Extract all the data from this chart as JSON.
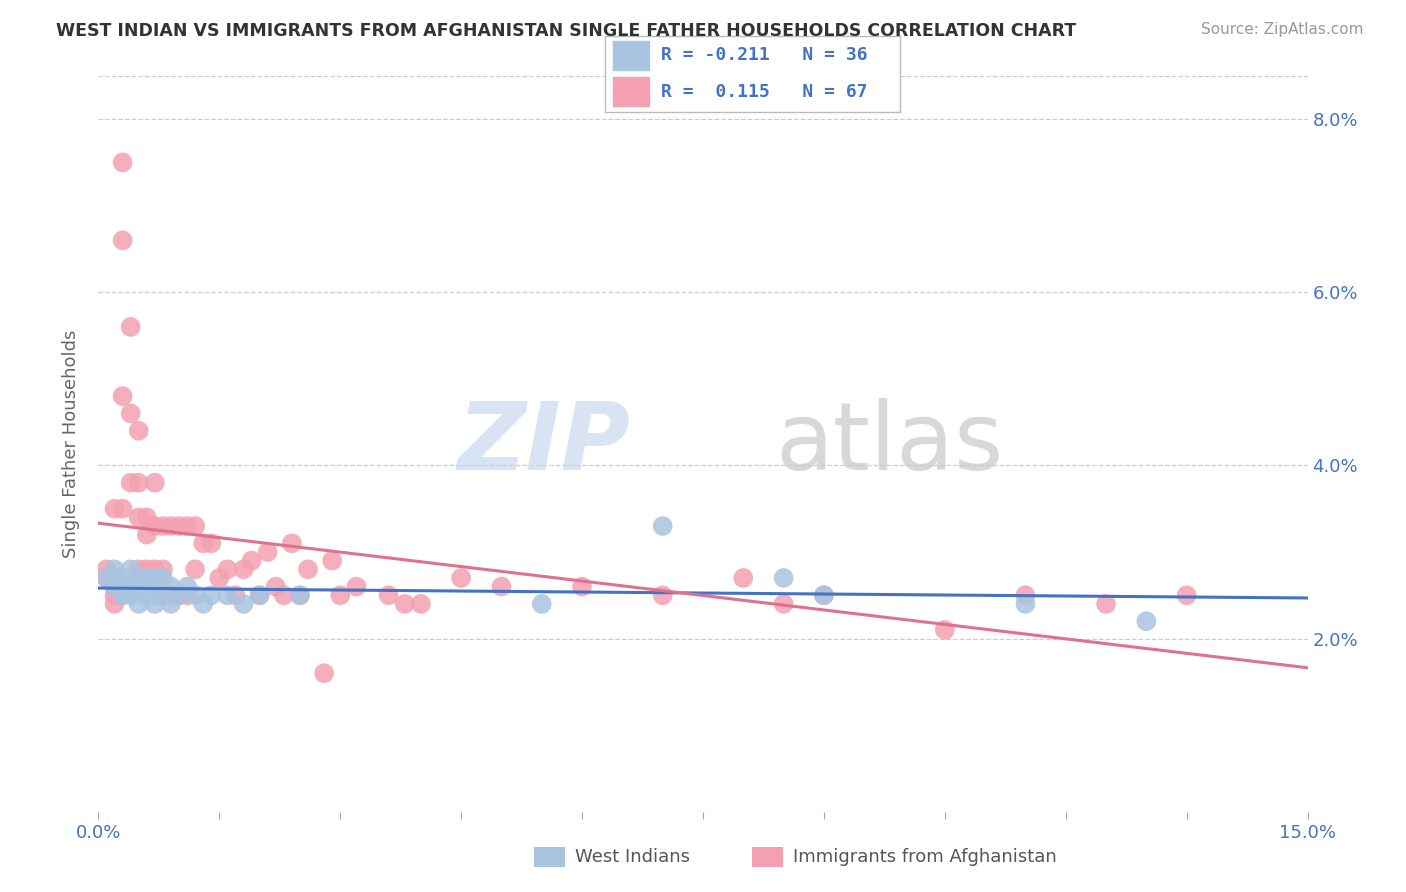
{
  "title": "WEST INDIAN VS IMMIGRANTS FROM AFGHANISTAN SINGLE FATHER HOUSEHOLDS CORRELATION CHART",
  "source": "Source: ZipAtlas.com",
  "ylabel": "Single Father Households",
  "xlim": [
    0.0,
    0.15
  ],
  "ylim": [
    0.0,
    0.085
  ],
  "ytick_positions": [
    0.0,
    0.01,
    0.02,
    0.03,
    0.04,
    0.05,
    0.06,
    0.07,
    0.08
  ],
  "ytick_labels": [
    "",
    "",
    "2.0%",
    "",
    "4.0%",
    "",
    "6.0%",
    "",
    "8.0%"
  ],
  "xtick_positions": [
    0.0,
    0.015,
    0.03,
    0.045,
    0.06,
    0.075,
    0.09,
    0.105,
    0.12,
    0.135,
    0.15
  ],
  "xtick_labels": [
    "0.0%",
    "",
    "",
    "",
    "",
    "",
    "",
    "",
    "",
    "",
    "15.0%"
  ],
  "west_indians_R": -0.211,
  "west_indians_N": 36,
  "afghanistan_R": 0.115,
  "afghanistan_N": 67,
  "west_indians_color": "#a8c4e0",
  "afghanistan_color": "#f4a0b0",
  "west_indians_line_color": "#4472c4",
  "afghanistan_line_color": "#e07090",
  "background_color": "#ffffff",
  "grid_color": "#cccccc",
  "west_indians_x": [
    0.001,
    0.002,
    0.002,
    0.003,
    0.003,
    0.003,
    0.004,
    0.004,
    0.004,
    0.005,
    0.005,
    0.005,
    0.006,
    0.006,
    0.007,
    0.007,
    0.007,
    0.008,
    0.008,
    0.009,
    0.009,
    0.01,
    0.011,
    0.012,
    0.013,
    0.014,
    0.016,
    0.018,
    0.02,
    0.025,
    0.055,
    0.07,
    0.085,
    0.09,
    0.115,
    0.13
  ],
  "west_indians_y": [
    0.027,
    0.028,
    0.026,
    0.027,
    0.025,
    0.026,
    0.028,
    0.026,
    0.025,
    0.027,
    0.026,
    0.024,
    0.027,
    0.025,
    0.027,
    0.025,
    0.024,
    0.027,
    0.025,
    0.026,
    0.024,
    0.025,
    0.026,
    0.025,
    0.024,
    0.025,
    0.025,
    0.024,
    0.025,
    0.025,
    0.024,
    0.033,
    0.027,
    0.025,
    0.024,
    0.022
  ],
  "afghanistan_x": [
    0.001,
    0.001,
    0.002,
    0.002,
    0.002,
    0.002,
    0.002,
    0.003,
    0.003,
    0.003,
    0.003,
    0.004,
    0.004,
    0.004,
    0.005,
    0.005,
    0.005,
    0.005,
    0.006,
    0.006,
    0.006,
    0.007,
    0.007,
    0.007,
    0.008,
    0.008,
    0.008,
    0.009,
    0.009,
    0.01,
    0.01,
    0.011,
    0.011,
    0.012,
    0.012,
    0.013,
    0.014,
    0.015,
    0.016,
    0.017,
    0.018,
    0.019,
    0.02,
    0.021,
    0.022,
    0.023,
    0.024,
    0.025,
    0.026,
    0.028,
    0.029,
    0.03,
    0.032,
    0.036,
    0.038,
    0.04,
    0.045,
    0.05,
    0.06,
    0.07,
    0.08,
    0.085,
    0.09,
    0.105,
    0.115,
    0.125,
    0.135
  ],
  "afghanistan_y": [
    0.028,
    0.027,
    0.035,
    0.027,
    0.026,
    0.025,
    0.024,
    0.075,
    0.066,
    0.048,
    0.035,
    0.056,
    0.046,
    0.038,
    0.044,
    0.038,
    0.034,
    0.028,
    0.034,
    0.032,
    0.028,
    0.038,
    0.033,
    0.028,
    0.033,
    0.028,
    0.025,
    0.033,
    0.025,
    0.033,
    0.025,
    0.033,
    0.025,
    0.033,
    0.028,
    0.031,
    0.031,
    0.027,
    0.028,
    0.025,
    0.028,
    0.029,
    0.025,
    0.03,
    0.026,
    0.025,
    0.031,
    0.025,
    0.028,
    0.016,
    0.029,
    0.025,
    0.026,
    0.025,
    0.024,
    0.024,
    0.027,
    0.026,
    0.026,
    0.025,
    0.027,
    0.024,
    0.025,
    0.021,
    0.025,
    0.024,
    0.025
  ]
}
